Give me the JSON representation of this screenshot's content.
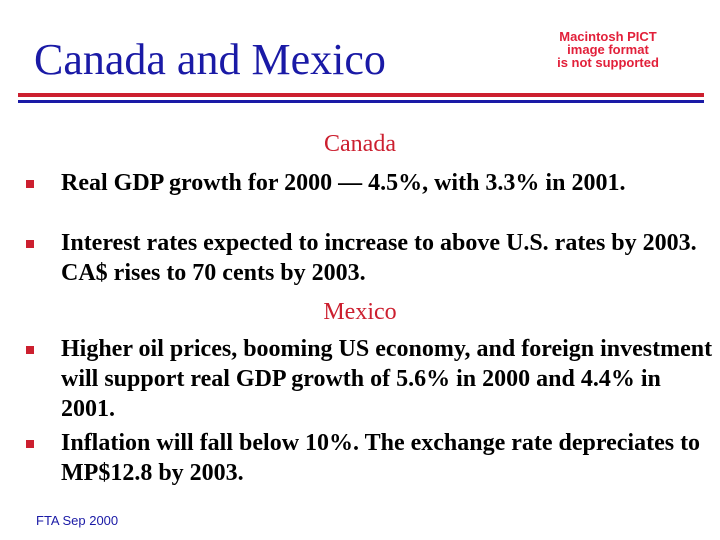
{
  "slide": {
    "title": "Canada and Mexico",
    "placeholder_image": {
      "line1": "Macintosh PICT",
      "line2": "image format",
      "line3": "is not supported"
    },
    "colors": {
      "title": "#1a1aa6",
      "accent_red": "#cc1f2f",
      "body": "#000000"
    },
    "sections": [
      {
        "heading": "Canada",
        "bullets": [
          "Real GDP growth for 2000 — 4.5%, with 3.3% in 2001.",
          "Interest rates expected to increase to above U.S. rates by 2003. CA$ rises to 70 cents by 2003."
        ]
      },
      {
        "heading": "Mexico",
        "bullets": [
          "Higher oil prices, booming US economy, and foreign investment will support real GDP growth of 5.6% in 2000 and 4.4% in 2001.",
          "Inflation will fall below 10%. The exchange rate depreciates to MP$12.8 by 2003."
        ]
      }
    ],
    "footer": "FTA Sep 2000"
  }
}
